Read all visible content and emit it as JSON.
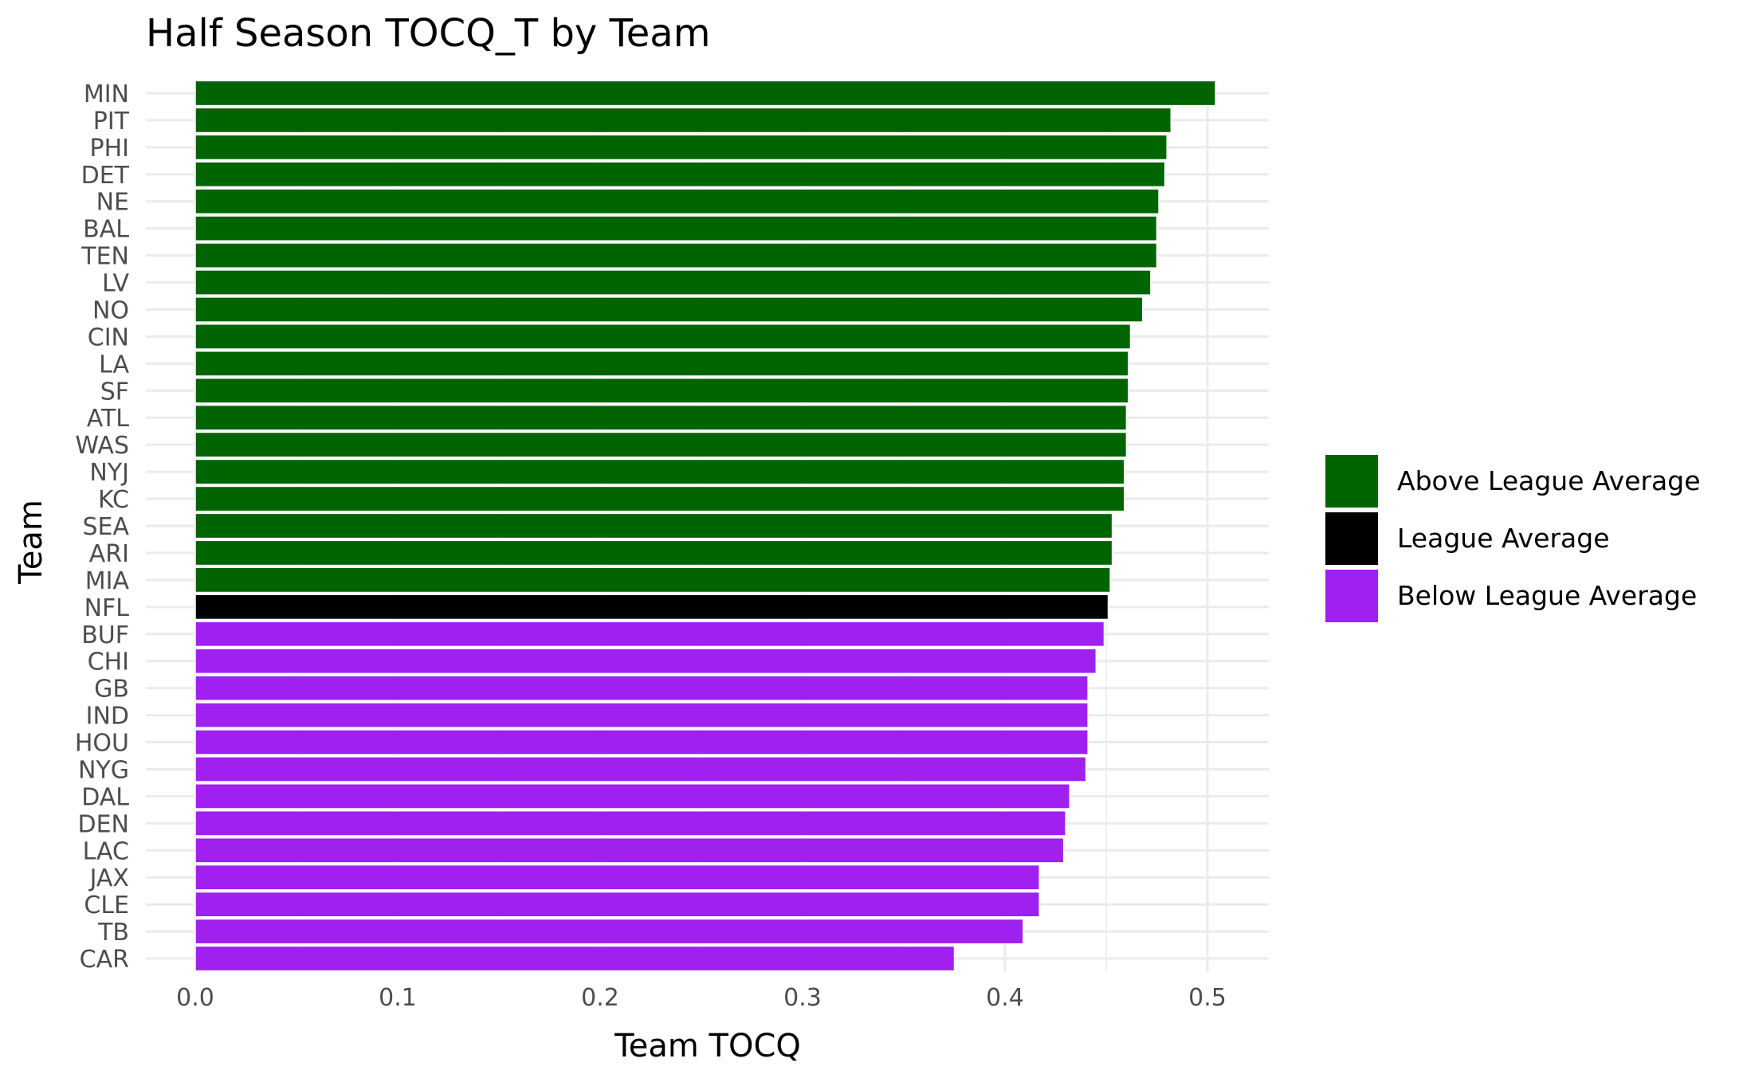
{
  "chart_data": {
    "type": "bar",
    "orientation": "horizontal",
    "title": "Half Season TOCQ_T by Team",
    "xlabel": "Team TOCQ",
    "ylabel": "Team",
    "xlim": [
      0,
      0.53
    ],
    "x_ticks": [
      "0.0",
      "0.1",
      "0.2",
      "0.3",
      "0.4",
      "0.5"
    ],
    "x_tick_values": [
      0,
      0.1,
      0.2,
      0.3,
      0.4,
      0.5
    ],
    "grid": true,
    "legend_position": "right",
    "legend": [
      {
        "label": "Above League Average",
        "color": "#006400"
      },
      {
        "label": "League Average",
        "color": "#000000"
      },
      {
        "label": "Below League Average",
        "color": "#a020f0"
      }
    ],
    "categories": [
      "MIN",
      "PIT",
      "PHI",
      "DET",
      "NE",
      "BAL",
      "TEN",
      "LV",
      "NO",
      "CIN",
      "LA",
      "SF",
      "ATL",
      "WAS",
      "NYJ",
      "KC",
      "SEA",
      "ARI",
      "MIA",
      "NFL",
      "BUF",
      "CHI",
      "GB",
      "IND",
      "HOU",
      "NYG",
      "DAL",
      "DEN",
      "LAC",
      "JAX",
      "CLE",
      "TB",
      "CAR"
    ],
    "values": [
      0.504,
      0.482,
      0.48,
      0.479,
      0.476,
      0.475,
      0.475,
      0.472,
      0.468,
      0.462,
      0.461,
      0.461,
      0.46,
      0.46,
      0.459,
      0.459,
      0.453,
      0.453,
      0.452,
      0.451,
      0.449,
      0.445,
      0.441,
      0.441,
      0.441,
      0.44,
      0.432,
      0.43,
      0.429,
      0.417,
      0.417,
      0.409,
      0.375
    ],
    "groups": [
      "Above League Average",
      "Above League Average",
      "Above League Average",
      "Above League Average",
      "Above League Average",
      "Above League Average",
      "Above League Average",
      "Above League Average",
      "Above League Average",
      "Above League Average",
      "Above League Average",
      "Above League Average",
      "Above League Average",
      "Above League Average",
      "Above League Average",
      "Above League Average",
      "Above League Average",
      "Above League Average",
      "Above League Average",
      "League Average",
      "Below League Average",
      "Below League Average",
      "Below League Average",
      "Below League Average",
      "Below League Average",
      "Below League Average",
      "Below League Average",
      "Below League Average",
      "Below League Average",
      "Below League Average",
      "Below League Average",
      "Below League Average",
      "Below League Average"
    ]
  }
}
